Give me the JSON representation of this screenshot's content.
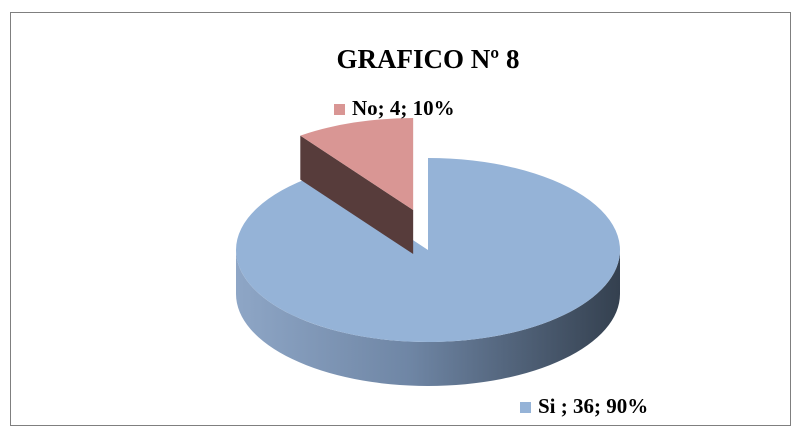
{
  "chart_data": {
    "type": "pie3d",
    "title": "GRAFICO Nº 8",
    "values": [
      36,
      4
    ],
    "value_labels": [
      "Si ; 36; 90%",
      "No; 4; 10%"
    ],
    "colors": [
      "#95b3d7",
      "#d99694"
    ]
  }
}
